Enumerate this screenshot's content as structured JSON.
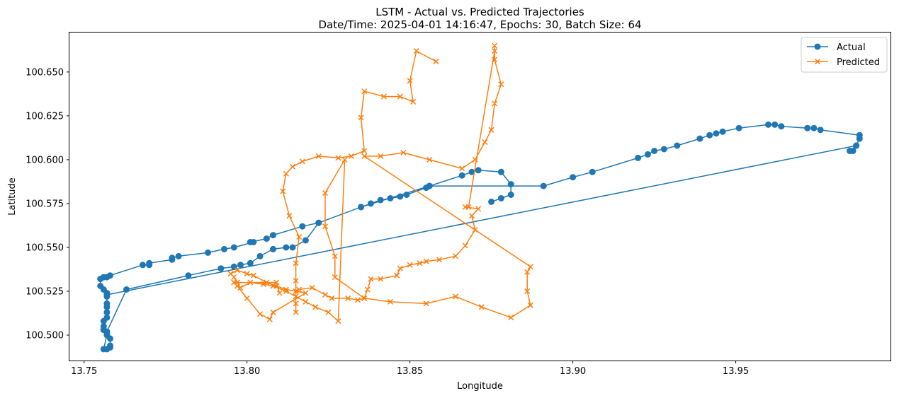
{
  "chart_data": {
    "type": "line",
    "title": "LSTM - Actual vs. Predicted Trajectories",
    "subtitle": "Date/Time: 2025-04-01 14:16:47, Epochs: 30, Batch Size: 64",
    "xlabel": "Longitude",
    "ylabel": "Latitude",
    "xlim": [
      13.7455,
      13.9975
    ],
    "ylim": [
      100.4855,
      100.6725
    ],
    "xticks": [
      13.75,
      13.8,
      13.85,
      13.9,
      13.95
    ],
    "xtick_labels": [
      "13.75",
      "13.80",
      "13.85",
      "13.90",
      "13.95"
    ],
    "yticks": [
      100.5,
      100.525,
      100.55,
      100.575,
      100.6,
      100.625,
      100.65
    ],
    "ytick_labels": [
      "100.500",
      "100.525",
      "100.550",
      "100.575",
      "100.600",
      "100.625",
      "100.650"
    ],
    "grid": false,
    "legend_position": "top-right",
    "series": [
      {
        "name": "Actual",
        "color": "#1f77b4",
        "marker": "circle",
        "points": [
          [
            13.875,
            100.576
          ],
          [
            13.878,
            100.578
          ],
          [
            13.881,
            100.58
          ],
          [
            13.881,
            100.586
          ],
          [
            13.878,
            100.593
          ],
          [
            13.871,
            100.594
          ],
          [
            13.869,
            100.593
          ],
          [
            13.866,
            100.591
          ],
          [
            13.856,
            100.585
          ],
          [
            13.855,
            100.584
          ],
          [
            13.849,
            100.58
          ],
          [
            13.847,
            100.579
          ],
          [
            13.844,
            100.578
          ],
          [
            13.841,
            100.577
          ],
          [
            13.838,
            100.575
          ],
          [
            13.835,
            100.573
          ],
          [
            13.822,
            100.564
          ],
          [
            13.817,
            100.562
          ],
          [
            13.808,
            100.557
          ],
          [
            13.806,
            100.555
          ],
          [
            13.801,
            100.553
          ],
          [
            13.802,
            100.553
          ],
          [
            13.796,
            100.55
          ],
          [
            13.793,
            100.549
          ],
          [
            13.788,
            100.547
          ],
          [
            13.779,
            100.545
          ],
          [
            13.777,
            100.544
          ],
          [
            13.777,
            100.543
          ],
          [
            13.77,
            100.541
          ],
          [
            13.77,
            100.54
          ],
          [
            13.768,
            100.54
          ],
          [
            13.758,
            100.534
          ],
          [
            13.757,
            100.533
          ],
          [
            13.756,
            100.533
          ],
          [
            13.755,
            100.532
          ],
          [
            13.755,
            100.528
          ],
          [
            13.756,
            100.526
          ],
          [
            13.757,
            100.524
          ],
          [
            13.757,
            100.522
          ],
          [
            13.757,
            100.518
          ],
          [
            13.757,
            100.516
          ],
          [
            13.757,
            100.513
          ],
          [
            13.757,
            100.51
          ],
          [
            13.756,
            100.508
          ],
          [
            13.756,
            100.505
          ],
          [
            13.756,
            100.503
          ],
          [
            13.757,
            100.501
          ],
          [
            13.758,
            100.498
          ],
          [
            13.758,
            100.494
          ],
          [
            13.758,
            100.493
          ],
          [
            13.757,
            100.492
          ],
          [
            13.756,
            100.492
          ],
          [
            13.757,
            100.5
          ],
          [
            13.756,
            100.503
          ],
          [
            13.757,
            100.502
          ],
          [
            13.763,
            100.526
          ],
          [
            13.782,
            100.534
          ],
          [
            13.792,
            100.538
          ],
          [
            13.796,
            100.539
          ],
          [
            13.798,
            100.54
          ],
          [
            13.801,
            100.541
          ],
          [
            13.804,
            100.545
          ],
          [
            13.808,
            100.549
          ],
          [
            13.812,
            100.55
          ],
          [
            13.814,
            100.55
          ],
          [
            13.818,
            100.554
          ],
          [
            13.822,
            100.564
          ],
          [
            13.835,
            100.573
          ],
          [
            13.856,
            100.585
          ],
          [
            13.891,
            100.585
          ],
          [
            13.9,
            100.59
          ],
          [
            13.906,
            100.593
          ],
          [
            13.92,
            100.601
          ],
          [
            13.923,
            100.603
          ],
          [
            13.925,
            100.605
          ],
          [
            13.928,
            100.606
          ],
          [
            13.932,
            100.608
          ],
          [
            13.939,
            100.612
          ],
          [
            13.942,
            100.614
          ],
          [
            13.944,
            100.615
          ],
          [
            13.946,
            100.616
          ],
          [
            13.951,
            100.618
          ],
          [
            13.96,
            100.62
          ],
          [
            13.962,
            100.62
          ],
          [
            13.964,
            100.619
          ],
          [
            13.972,
            100.618
          ],
          [
            13.974,
            100.618
          ],
          [
            13.976,
            100.617
          ],
          [
            13.988,
            100.614
          ],
          [
            13.988,
            100.612
          ],
          [
            13.987,
            100.608
          ],
          [
            13.986,
            100.605
          ],
          [
            13.985,
            100.605
          ],
          [
            13.987,
            100.608
          ],
          [
            13.757,
            100.523
          ]
        ]
      },
      {
        "name": "Predicted",
        "color": "#ff7f0e",
        "marker": "x",
        "points": [
          [
            13.858,
            100.656
          ],
          [
            13.852,
            100.662
          ],
          [
            13.85,
            100.645
          ],
          [
            13.851,
            100.633
          ],
          [
            13.847,
            100.636
          ],
          [
            13.842,
            100.636
          ],
          [
            13.836,
            100.639
          ],
          [
            13.835,
            100.624
          ],
          [
            13.836,
            100.605
          ],
          [
            13.832,
            100.602
          ],
          [
            13.828,
            100.601
          ],
          [
            13.822,
            100.602
          ],
          [
            13.817,
            100.599
          ],
          [
            13.814,
            100.596
          ],
          [
            13.812,
            100.592
          ],
          [
            13.811,
            100.582
          ],
          [
            13.813,
            100.568
          ],
          [
            13.816,
            100.556
          ],
          [
            13.815,
            100.541
          ],
          [
            13.815,
            100.531
          ],
          [
            13.815,
            100.518
          ],
          [
            13.815,
            100.513
          ],
          [
            13.815,
            100.525
          ],
          [
            13.816,
            100.526
          ],
          [
            13.82,
            100.527
          ],
          [
            13.824,
            100.523
          ],
          [
            13.826,
            100.521
          ],
          [
            13.831,
            100.521
          ],
          [
            13.834,
            100.52
          ],
          [
            13.836,
            100.521
          ],
          [
            13.844,
            100.519
          ],
          [
            13.855,
            100.518
          ],
          [
            13.864,
            100.522
          ],
          [
            13.872,
            100.516
          ],
          [
            13.881,
            100.51
          ],
          [
            13.887,
            100.517
          ],
          [
            13.886,
            100.525
          ],
          [
            13.886,
            100.536
          ],
          [
            13.887,
            100.539
          ],
          [
            13.836,
            100.602
          ],
          [
            13.841,
            100.602
          ],
          [
            13.848,
            100.604
          ],
          [
            13.856,
            100.6
          ],
          [
            13.866,
            100.595
          ],
          [
            13.87,
            100.6
          ],
          [
            13.873,
            100.61
          ],
          [
            13.875,
            100.617
          ],
          [
            13.876,
            100.632
          ],
          [
            13.878,
            100.643
          ],
          [
            13.876,
            100.657
          ],
          [
            13.876,
            100.665
          ],
          [
            13.876,
            100.662
          ],
          [
            13.868,
            100.573
          ],
          [
            13.867,
            100.573
          ],
          [
            13.871,
            100.572
          ],
          [
            13.869,
            100.568
          ],
          [
            13.87,
            100.56
          ],
          [
            13.867,
            100.551
          ],
          [
            13.864,
            100.545
          ],
          [
            13.859,
            100.543
          ],
          [
            13.855,
            100.542
          ],
          [
            13.853,
            100.541
          ],
          [
            13.85,
            100.54
          ],
          [
            13.847,
            100.538
          ],
          [
            13.846,
            100.534
          ],
          [
            13.841,
            100.532
          ],
          [
            13.838,
            100.532
          ],
          [
            13.837,
            100.526
          ],
          [
            13.836,
            100.521
          ],
          [
            13.827,
            100.533
          ],
          [
            13.827,
            100.545
          ],
          [
            13.824,
            100.562
          ],
          [
            13.824,
            100.581
          ],
          [
            13.83,
            100.6
          ],
          [
            13.828,
            100.508
          ],
          [
            13.825,
            100.513
          ],
          [
            13.821,
            100.516
          ],
          [
            13.818,
            100.519
          ],
          [
            13.815,
            100.522
          ],
          [
            13.812,
            100.525
          ],
          [
            13.808,
            100.528
          ],
          [
            13.805,
            100.529
          ],
          [
            13.801,
            100.53
          ],
          [
            13.798,
            100.527
          ],
          [
            13.797,
            100.53
          ],
          [
            13.796,
            100.533
          ],
          [
            13.795,
            100.535
          ],
          [
            13.797,
            100.537
          ],
          [
            13.8,
            100.535
          ],
          [
            13.802,
            100.534
          ],
          [
            13.806,
            100.53
          ],
          [
            13.809,
            100.528
          ],
          [
            13.812,
            100.526
          ],
          [
            13.815,
            100.525
          ],
          [
            13.818,
            100.524
          ],
          [
            13.808,
            100.513
          ],
          [
            13.807,
            100.509
          ],
          [
            13.804,
            100.512
          ],
          [
            13.8,
            100.521
          ],
          [
            13.797,
            100.528
          ],
          [
            13.796,
            100.53
          ],
          [
            13.809,
            100.53
          ],
          [
            13.81,
            100.524
          ]
        ]
      }
    ]
  }
}
